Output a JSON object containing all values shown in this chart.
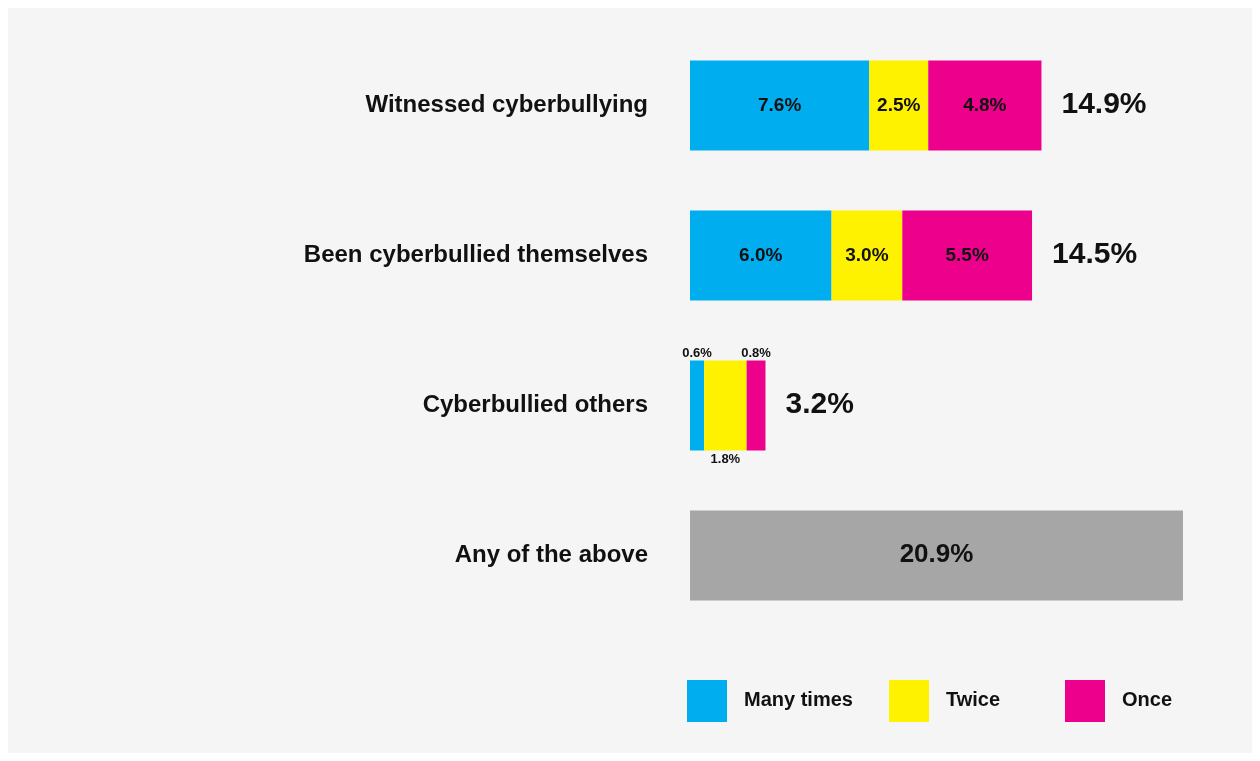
{
  "chart_data": {
    "type": "bar",
    "orientation": "horizontal",
    "stacked": true,
    "tick_labels": "y",
    "legend": "bottom right",
    "categories": [
      "Witnessed cyberbullying",
      "Been cyberbullied themselves",
      "Cyberbullied others",
      "Any of the above"
    ],
    "series": [
      {
        "name": "Many times",
        "color": "#00aeef",
        "values": [
          7.6,
          6.0,
          0.6,
          null
        ],
        "value_labels": [
          "7.6%",
          "6.0%",
          "0.6%",
          null
        ]
      },
      {
        "name": "Twice",
        "color": "#fff200",
        "values": [
          2.5,
          3.0,
          1.8,
          null
        ],
        "value_labels": [
          "2.5%",
          "3.0%",
          "1.8%",
          null
        ]
      },
      {
        "name": "Once",
        "color": "#ec008c",
        "values": [
          4.8,
          5.5,
          0.8,
          null
        ],
        "value_labels": [
          "4.8%",
          "5.5%",
          "0.8%",
          null
        ]
      },
      {
        "color": "#a6a6a6",
        "values": [
          null,
          null,
          null,
          20.9
        ],
        "value_labels": [
          null,
          null,
          null,
          "20.9%"
        ]
      }
    ],
    "totals": [
      "14.9%",
      "14.5%",
      "3.2%",
      null
    ]
  }
}
